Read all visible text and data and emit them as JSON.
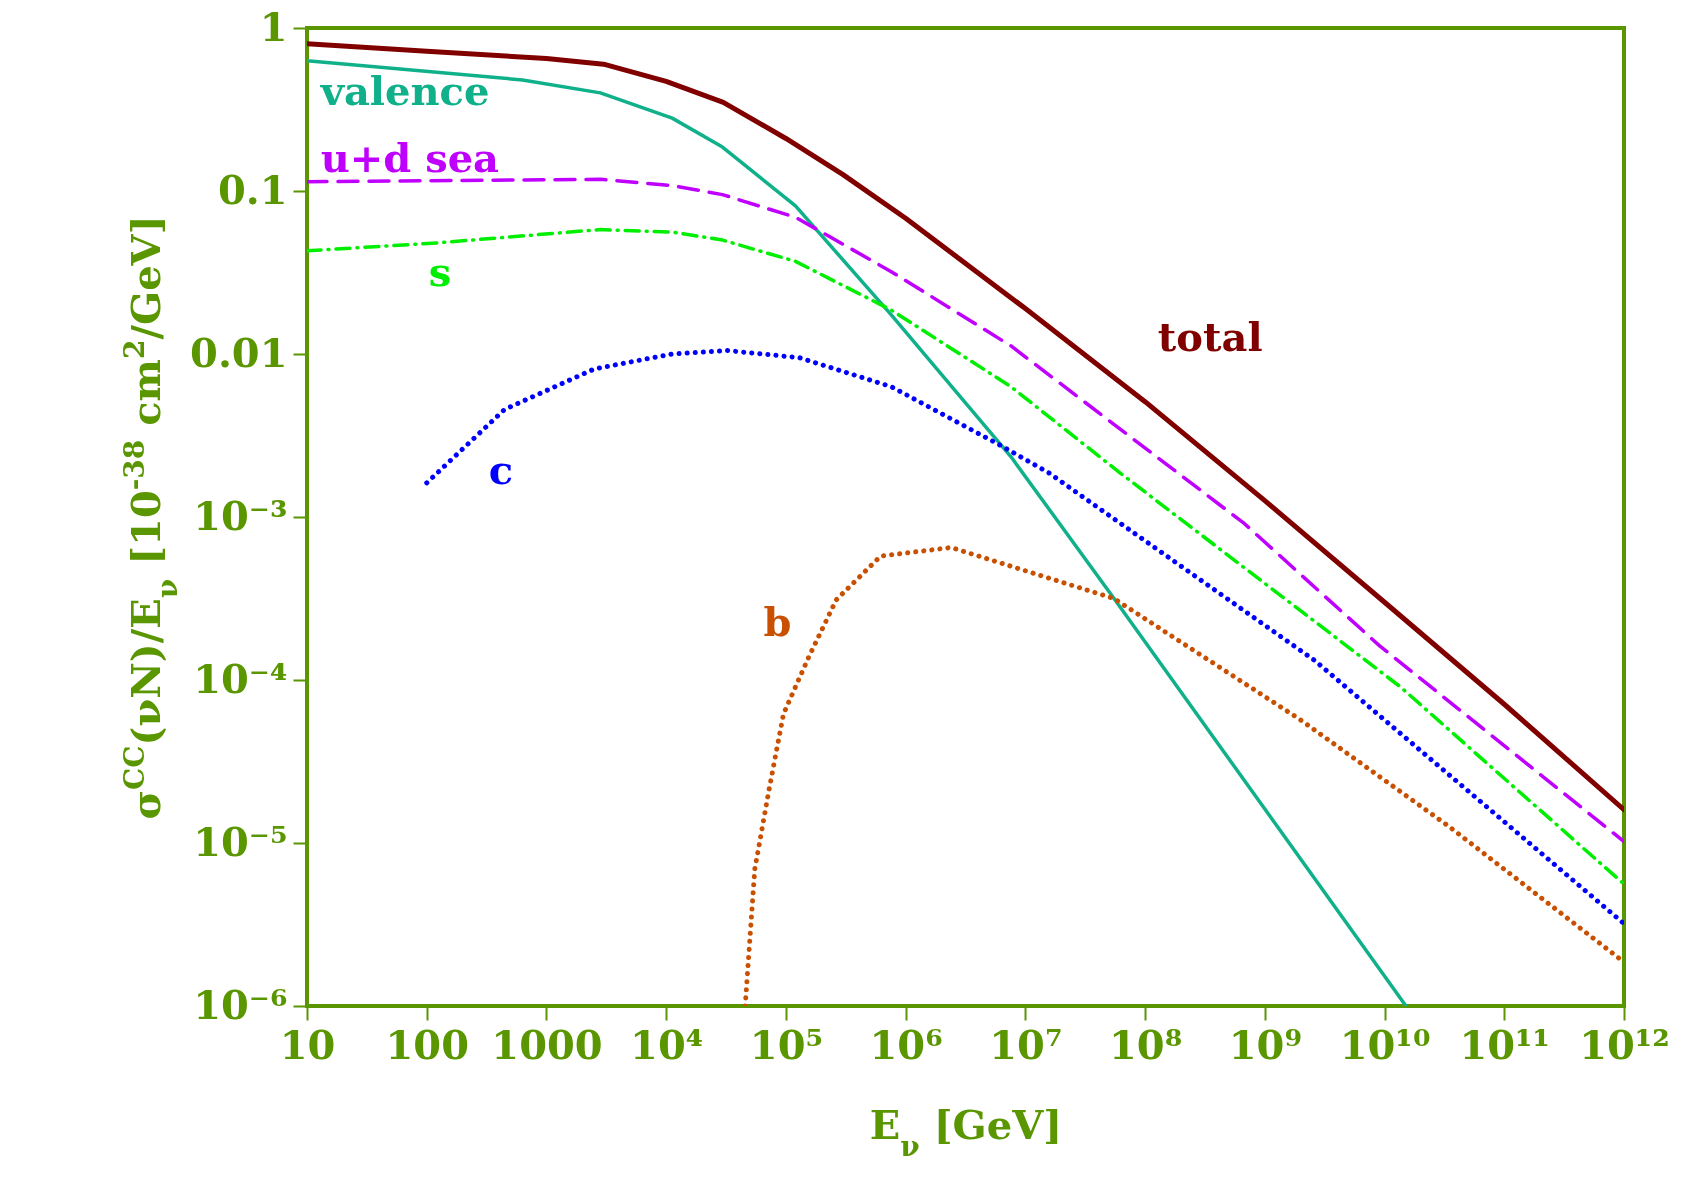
{
  "chart_data": {
    "type": "line",
    "xlabel": "E$_{ν}$ [GeV]",
    "ylabel": "σ$^{CC}$(νN)/E$_{ν}$ [10$^{-38}$ cm$^{2}$/GeV]",
    "log": "xy",
    "xlim": [
      10,
      1000000000000.0
    ],
    "ylim": [
      1e-06,
      1
    ],
    "xticks": [
      10,
      100,
      1000,
      {
        "value": 10000.0,
        "label": "10⁴"
      },
      {
        "value": 100000.0,
        "label": "10⁵"
      },
      {
        "value": 1000000.0,
        "label": "10⁶"
      },
      {
        "value": 10000000.0,
        "label": "10⁷"
      },
      {
        "value": 100000000.0,
        "label": "10⁸"
      },
      {
        "value": 1000000000.0,
        "label": "10⁹"
      },
      {
        "value": 10000000000.0,
        "label": "10¹⁰"
      },
      {
        "value": 100000000000.0,
        "label": "10¹¹"
      },
      {
        "value": 1000000000000.0,
        "label": "10¹²"
      }
    ],
    "yticks": [
      {
        "value": 1e-06,
        "label": "10⁻⁶"
      },
      {
        "value": 1e-05,
        "label": "10⁻⁵"
      },
      {
        "value": 0.0001,
        "label": "10⁻⁴"
      },
      {
        "value": 0.001,
        "label": "10⁻³"
      },
      0.01,
      0.1,
      1
    ],
    "series": [
      {
        "name": "total",
        "color": "#800000",
        "line_style": "solid",
        "x": [
          10,
          100,
          1000,
          3000,
          10000.0,
          30000.0,
          100000.0,
          300000.0,
          1000000.0,
          10000000.0,
          100000000.0,
          1000000000.0,
          10000000000.0,
          100000000000.0,
          1000000000000.0
        ],
        "values": [
          0.8,
          0.72,
          0.65,
          0.6,
          0.47,
          0.35,
          0.21,
          0.126,
          0.068,
          0.019,
          0.0051,
          0.00126,
          0.0003,
          7.1e-05,
          1.6e-05
        ]
      },
      {
        "name": "valence",
        "color": "#10b08a",
        "line_style": "solid",
        "x": [
          10,
          631,
          2818,
          11220,
          29512,
          120226,
          758578,
          7590000.0,
          55000000.0,
          15100000000.0
        ],
        "values": [
          0.63,
          0.48,
          0.4,
          0.28,
          0.186,
          0.081,
          0.0174,
          0.00234,
          0.000316,
          1e-06
        ]
      },
      {
        "name": "u+d sea",
        "color": "#bf00ff",
        "line_style": "dashed",
        "x": [
          10,
          2818,
          11220,
          29512,
          120226,
          758578,
          7590000.0,
          676000000.0,
          9100000000.0,
          1000000000000.0
        ],
        "values": [
          0.114,
          0.118,
          0.108,
          0.095,
          0.069,
          0.032,
          0.0112,
          0.00091,
          0.000162,
          1.02e-05
        ]
      },
      {
        "name": "s",
        "color": "#00ee00",
        "line_style": "dashdot",
        "x": [
          10,
          120,
          2818,
          11220,
          29512,
          120226,
          758578,
          7590000.0,
          62000000.0,
          13500000000.0,
          1000000000000.0
        ],
        "values": [
          0.043,
          0.048,
          0.058,
          0.056,
          0.05,
          0.037,
          0.0186,
          0.0063,
          0.00186,
          9.1e-05,
          5.6e-06
        ]
      },
      {
        "name": "c",
        "color": "#0000ff",
        "line_style": "dotted",
        "x": [
          100,
          447,
          2512,
          11220,
          32359,
          128825,
          758578,
          6200000.0,
          15800000.0,
          2600000000.0,
          1000000000000.0
        ],
        "values": [
          0.00162,
          0.00457,
          0.0081,
          0.01,
          0.0105,
          0.0095,
          0.0063,
          0.00275,
          0.00186,
          0.000132,
          3.2e-06
        ]
      },
      {
        "name": "b",
        "color": "#c85000",
        "line_style": "dotted",
        "x": [
          45709,
          54954,
          72444,
          95499,
          154882,
          263027,
          616595,
          2400000.0,
          55000000.0,
          1950000000.0,
          34700000000.0,
          1000000000000.0
        ],
        "values": [
          1e-06,
          6.9e-06,
          2.14e-05,
          6.2e-05,
          0.000138,
          0.00031,
          0.000575,
          0.00065,
          0.000316,
          5.75e-05,
          1.26e-05,
          1.86e-06
        ]
      }
    ]
  }
}
